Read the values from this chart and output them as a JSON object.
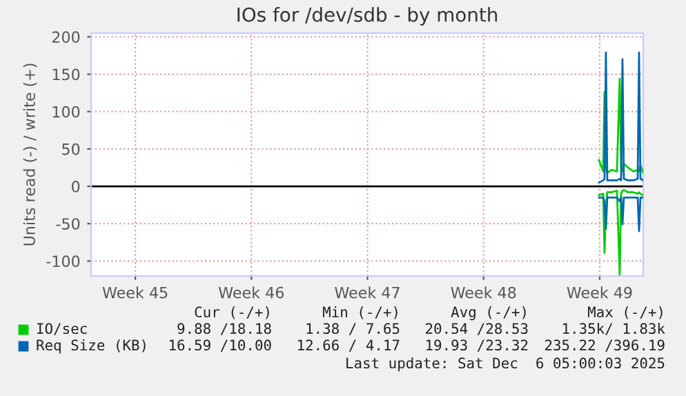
{
  "chart_data": {
    "type": "line",
    "title": "IOs for /dev/sdb - by month",
    "ylabel": "Units read (-) / write (+)",
    "x": [
      "2025-12-03T13:00",
      "2025-12-03T19:00",
      "2025-12-03T21:00",
      "2025-12-03T23:00",
      "2025-12-04T01:00",
      "2025-12-04T07:00",
      "2025-12-04T15:00",
      "2025-12-04T19:00",
      "2025-12-04T21:00",
      "2025-12-04T23:00",
      "2025-12-05T01:00",
      "2025-12-05T07:00",
      "2025-12-05T15:00",
      "2025-12-05T21:00",
      "2025-12-05T23:00",
      "2025-12-06T01:00",
      "2025-12-06T05:00"
    ],
    "series": [
      {
        "name": "IO/sec",
        "color": "#00cc00",
        "values": [
          35,
          20,
          126,
          25,
          18,
          22,
          20,
          144,
          25,
          20,
          30,
          25,
          20,
          22,
          20,
          28,
          18
        ]
      },
      {
        "color": "#00cc00",
        "values": [
          -12,
          -10,
          -89,
          -30,
          -8,
          -8,
          -6,
          -118,
          -10,
          -6,
          -5,
          -8,
          -8,
          -10,
          -8,
          -10,
          -12
        ]
      },
      {
        "name": "Req Size (KB)",
        "color": "#0066b3",
        "values": [
          5,
          8,
          10,
          179,
          8,
          8,
          8,
          10,
          8,
          170,
          10,
          8,
          8,
          10,
          179,
          10,
          8
        ]
      },
      {
        "color": "#0066b3",
        "values": [
          -15,
          -15,
          -20,
          -57,
          -15,
          -15,
          -15,
          -20,
          -15,
          -51,
          -15,
          -15,
          -15,
          -15,
          -60,
          -15,
          -15
        ]
      }
    ],
    "xlim": [
      "2025-11-02T22:00",
      "2025-12-06T05:00"
    ],
    "xticks": [
      {
        "value": "2025-11-05T14:00",
        "label": "Week 45"
      },
      {
        "value": "2025-11-12T14:00",
        "label": "Week 46"
      },
      {
        "value": "2025-11-19T14:00",
        "label": "Week 47"
      },
      {
        "value": "2025-11-26T14:00",
        "label": "Week 48"
      },
      {
        "value": "2025-12-03T14:00",
        "label": "Week 49"
      }
    ],
    "ylim": [
      -120,
      205
    ],
    "yticks": [
      -100,
      -50,
      0,
      50,
      100,
      150,
      200
    ],
    "ref_lines": [
      {
        "axis": "y",
        "value": 0,
        "color": "#000000"
      }
    ],
    "grid": true,
    "legend": "bottom",
    "marker": "none",
    "line_style": "solid",
    "annotations": [
      "Cur (-/+)",
      "Min (-/+)",
      "Avg (-/+)",
      "Max (-/+)",
      "9.88 /18.18",
      "1.38 / 7.65",
      "20.54 /28.53",
      "1.35k/ 1.83k",
      "16.59 /10.00",
      "12.66 / 4.17",
      "19.93 /23.32",
      "235.22 /396.19",
      "Last update: Sat Dec  6 05:00:03 2025"
    ]
  }
}
